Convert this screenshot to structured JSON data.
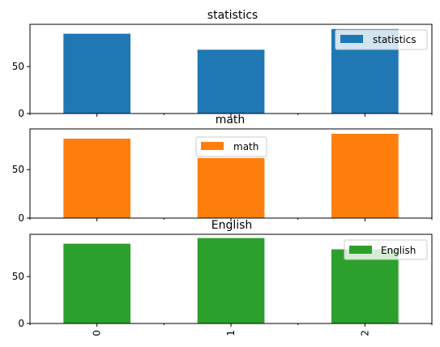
{
  "chart_data": [
    {
      "type": "bar",
      "title": "statistics",
      "categories": [
        "0",
        "1",
        "2"
      ],
      "series": [
        {
          "name": "statistics",
          "values": [
            85,
            68,
            90
          ]
        }
      ],
      "ylim": [
        0,
        95
      ],
      "yticks": [
        0,
        50
      ],
      "legend": "upper right",
      "grid": false,
      "color": "#1f77b4",
      "show_x_labels": false
    },
    {
      "type": "bar",
      "title": "math",
      "categories": [
        "0",
        "1",
        "2"
      ],
      "series": [
        {
          "name": "math",
          "values": [
            82,
            62,
            87
          ]
        }
      ],
      "ylim": [
        0,
        92
      ],
      "yticks": [
        0,
        50
      ],
      "legend": "upper center",
      "grid": false,
      "color": "#ff7f0e",
      "show_x_labels": false
    },
    {
      "type": "bar",
      "title": "English",
      "categories": [
        "0",
        "1",
        "2"
      ],
      "series": [
        {
          "name": "English",
          "values": [
            85,
            91,
            79
          ]
        }
      ],
      "ylim": [
        0,
        95
      ],
      "yticks": [
        0,
        50
      ],
      "legend": "upper right",
      "grid": false,
      "color": "#2ca02c",
      "show_x_labels": true
    }
  ]
}
